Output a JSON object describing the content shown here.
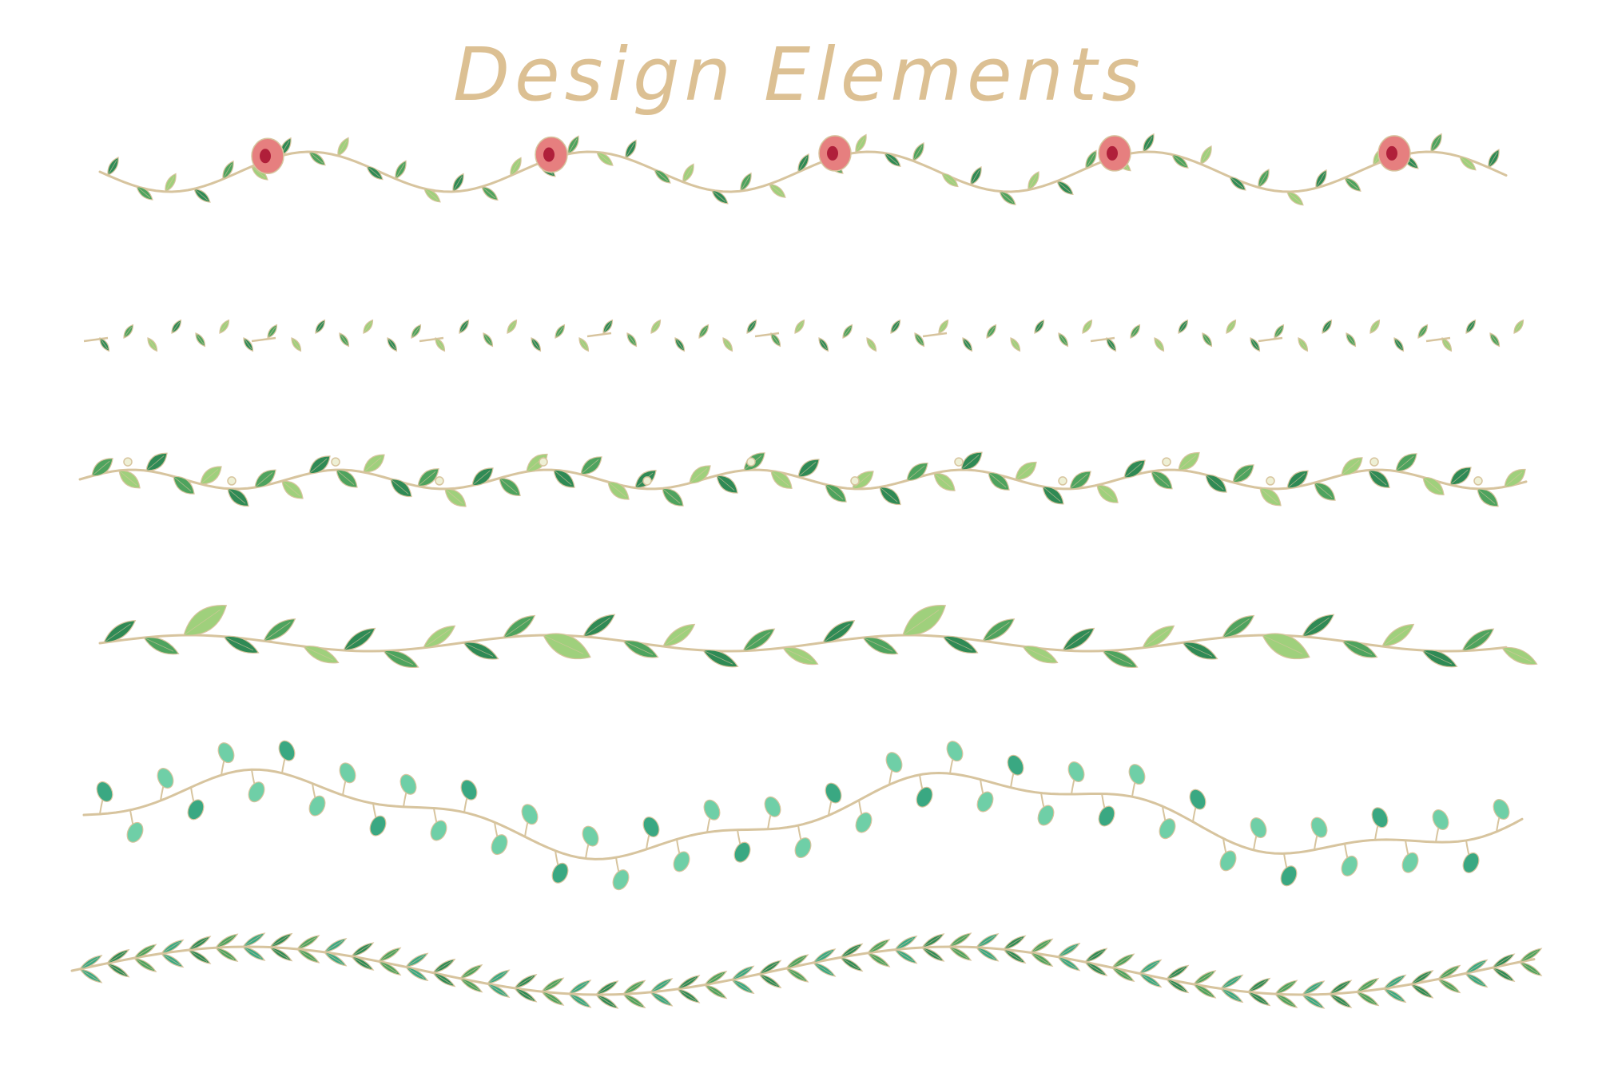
{
  "title": "Design Elements",
  "colors": {
    "stem": "#d7c49e",
    "leaf_dark": "#2f8a55",
    "leaf_mid": "#4ea35e",
    "leaf_light": "#9fd07c",
    "leaf_teal": "#3aa882",
    "leaf_mint": "#6fcfa7",
    "flower": "#e67f7f",
    "flower_center": "#b01f3a",
    "title": "#dcc093"
  },
  "borders": [
    {
      "name": "rosebud-vine-border",
      "style": "rosebud"
    },
    {
      "name": "small-leaf-border",
      "style": "small-leaf"
    },
    {
      "name": "round-leaf-border",
      "style": "round-leaf"
    },
    {
      "name": "large-leaf-border",
      "style": "large-leaf"
    },
    {
      "name": "bud-vine-border",
      "style": "bud"
    },
    {
      "name": "chevron-leaf-border",
      "style": "chevron"
    }
  ]
}
